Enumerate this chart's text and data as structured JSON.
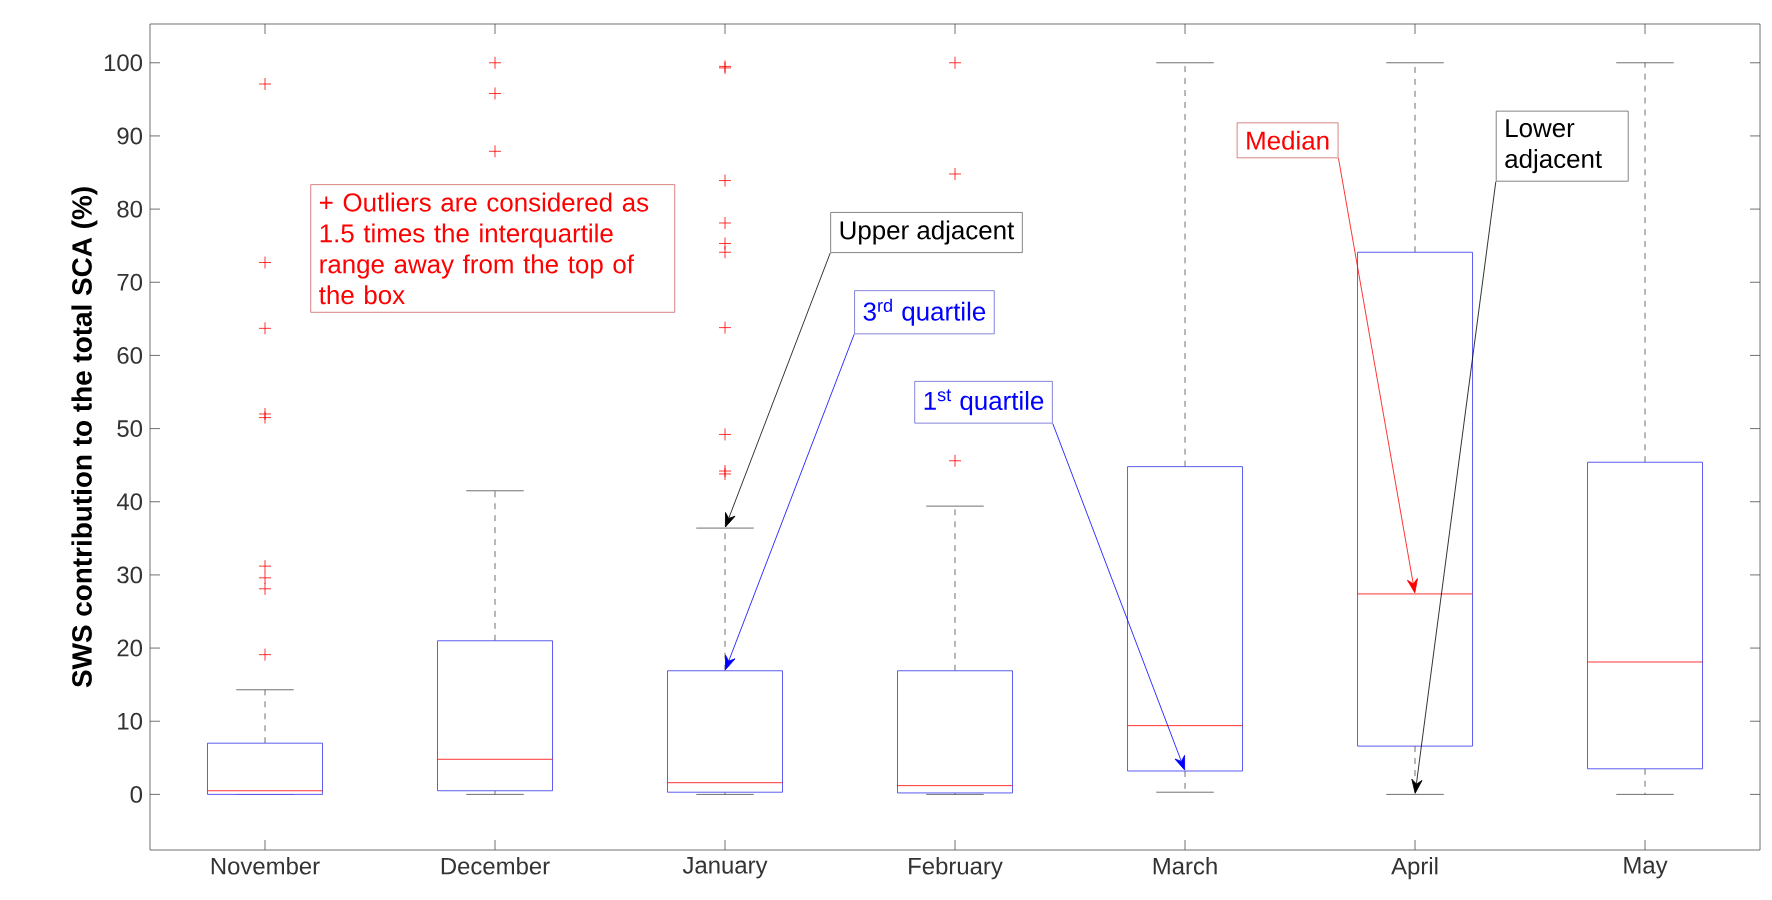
{
  "chart_data": {
    "type": "box",
    "ylabel": "SWS contribution to the total SCA (%)",
    "categories": [
      "November",
      "December",
      "January",
      "February",
      "March",
      "April",
      "May"
    ],
    "ylim": [
      -7.6,
      105.3
    ],
    "yticks": [
      0,
      10,
      20,
      30,
      40,
      50,
      60,
      70,
      80,
      90,
      100
    ],
    "series": [
      {
        "color": "#3333ee",
        "boxes": [
          {
            "low": 0,
            "q1": 0,
            "median": 0.5,
            "q3": 7.0,
            "high": 14.3,
            "outliers": [
              19.1,
              28.1,
              29.6,
              31.2,
              51.5,
              52,
              63.7,
              72.7,
              97.1
            ]
          },
          {
            "low": 0,
            "q1": 0.5,
            "median": 4.8,
            "q3": 21,
            "high": 41.5,
            "outliers": [
              87.9,
              95.8,
              100
            ]
          },
          {
            "low": 0,
            "q1": 0.3,
            "median": 1.6,
            "q3": 16.9,
            "high": 36.4,
            "outliers": [
              43.8,
              44.2,
              49.2,
              63.8,
              74.1,
              75.3,
              78.1,
              83.9,
              99.3,
              99.5
            ]
          },
          {
            "low": 0,
            "q1": 0.2,
            "median": 1.2,
            "q3": 16.9,
            "high": 39.4,
            "outliers": [
              45.6,
              84.8,
              100
            ]
          },
          {
            "low": 0.3,
            "q1": 3.2,
            "median": 9.4,
            "q3": 44.8,
            "high": 100
          },
          {
            "low": 0,
            "q1": 6.6,
            "median": 27.4,
            "q3": 74.1,
            "high": 100
          },
          {
            "low": 0,
            "q1": 3.5,
            "median": 18.1,
            "q3": 45.4,
            "high": 100
          }
        ]
      }
    ],
    "annotations": [
      "+ Outliers are considered as 1.5 times the interquartile range away from the top of the box",
      {
        "text": "Upper adjacent",
        "x": "January",
        "y": 36.4
      },
      {
        "text": "3$^{rd}$ quartile",
        "x": "January",
        "y": 16.9
      },
      {
        "text": "1$^{st}$ quartile",
        "x": "March",
        "y": 3.2
      },
      {
        "text": "Median",
        "x": "April",
        "y": 27.4
      },
      {
        "text": "Lower adjacent",
        "x": "April",
        "y": 0
      }
    ]
  }
}
